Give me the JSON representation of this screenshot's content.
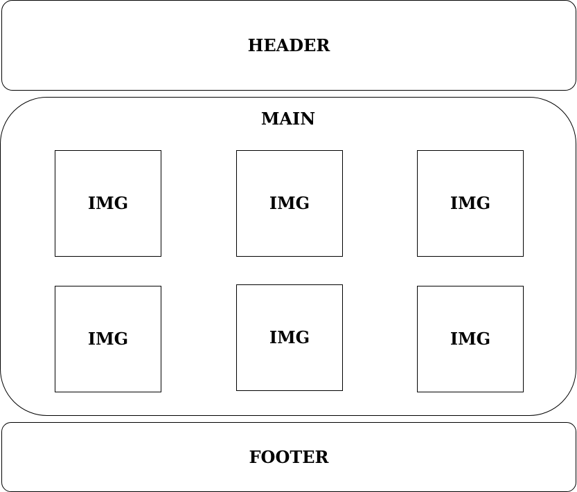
{
  "header": {
    "label": "HEADER"
  },
  "main": {
    "label": "MAIN",
    "images": [
      {
        "label": "IMG"
      },
      {
        "label": "IMG"
      },
      {
        "label": "IMG"
      },
      {
        "label": "IMG"
      },
      {
        "label": "IMG"
      },
      {
        "label": "IMG"
      }
    ]
  },
  "footer": {
    "label": "FOOTER"
  },
  "colors": {
    "stroke": "#000000",
    "background": "#ffffff"
  }
}
